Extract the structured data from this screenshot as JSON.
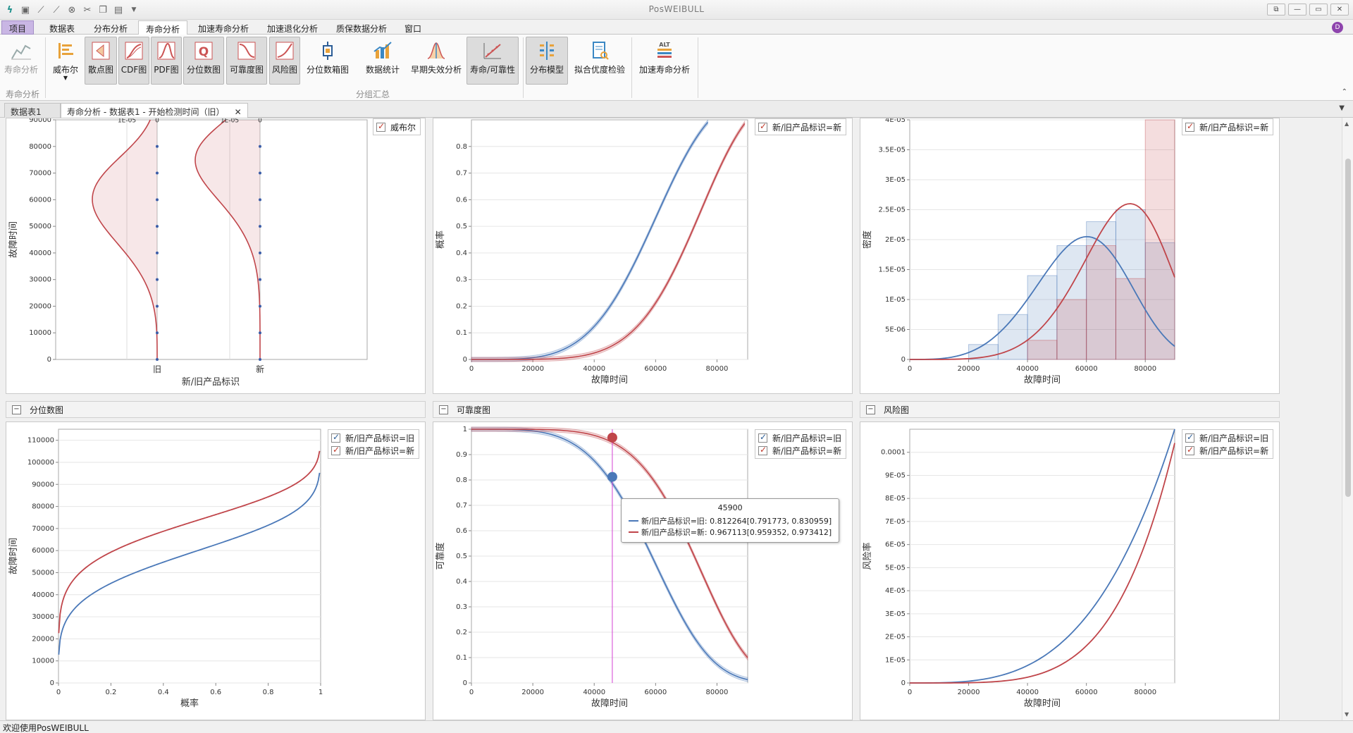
{
  "app": {
    "title": "PosWEIBULL"
  },
  "menu": {
    "project": "项目",
    "tabs": [
      "数据表",
      "分布分析",
      "寿命分析",
      "加速寿命分析",
      "加速退化分析",
      "质保数据分析",
      "窗口"
    ]
  },
  "ribbon": {
    "buttons": [
      "寿命分析",
      "威布尔",
      "散点图",
      "CDF图",
      "PDF图",
      "分位数图",
      "可靠度图",
      "风险图",
      "分位数箱图",
      "数据统计",
      "早期失效分析",
      "寿命/可靠性",
      "分布模型",
      "拟合优度检验",
      "加速寿命分析"
    ],
    "group_life": "寿命分析",
    "group_summary": "分组汇总"
  },
  "doc_tabs": [
    "数据表1",
    "寿命分析 - 数据表1 - 开始检测时间（旧）"
  ],
  "status": "欢迎使用PosWEIBULL",
  "colors": {
    "old": "#4a78b8",
    "new": "#c0454a",
    "crosshair": "#d43fd4"
  },
  "legend": {
    "old": "新/旧产品标识=旧",
    "new": "新/旧产品标识=新",
    "weibull": "威布尔"
  },
  "panels": {
    "quantile": "分位数图",
    "reliability": "可靠度图",
    "hazard": "风险图"
  },
  "tooltip": {
    "title": "45900",
    "old": "新/旧产品标识=旧: 0.812264[0.791773, 0.830959]",
    "new": "新/旧产品标识=新: 0.967113[0.959352, 0.973412]"
  },
  "chart_data": [
    {
      "id": "violin",
      "type": "scatter",
      "categories": [
        "旧",
        "新"
      ],
      "xlabel": "新/旧产品标识",
      "ylabel": "故障时间",
      "ylim": [
        0,
        90000
      ],
      "yticks": [
        0,
        10000,
        20000,
        30000,
        40000,
        50000,
        60000,
        70000,
        80000,
        90000
      ],
      "density_axis_labels": [
        "1E-05",
        "0",
        "1E-05",
        "0"
      ],
      "points": [
        0,
        10000,
        20000,
        30000,
        40000,
        50000,
        60000,
        70000,
        80000
      ]
    },
    {
      "id": "cdf",
      "type": "line",
      "xlabel": "故障时间",
      "ylabel": "概率",
      "xlim": [
        0,
        90000
      ],
      "ylim": [
        0,
        0.9
      ],
      "xticks": [
        0,
        20000,
        40000,
        60000,
        80000
      ],
      "yticks": [
        0,
        0.1,
        0.2,
        0.3,
        0.4,
        0.5,
        0.6,
        0.7,
        0.8
      ],
      "series": [
        {
          "name": "新/旧产品标识=旧",
          "weibull_scale": 64000,
          "weibull_shape": 4.3
        },
        {
          "name": "新/旧产品标识=新",
          "weibull_scale": 77500,
          "weibull_shape": 5.6
        }
      ]
    },
    {
      "id": "pdf",
      "type": "line",
      "xlabel": "故障时间",
      "ylabel": "密度",
      "xlim": [
        0,
        90000
      ],
      "ylim": [
        0,
        4e-05
      ],
      "xticks": [
        0,
        20000,
        40000,
        60000,
        80000
      ],
      "yticks": [
        "0",
        "5E-06",
        "1E-05",
        "1.5E-05",
        "2E-05",
        "2.5E-05",
        "3E-05",
        "3.5E-05",
        "4E-05"
      ],
      "histogram_bin_width": 10000,
      "histogram": [
        {
          "name": "新/旧产品标识=旧",
          "edges_start": 20000,
          "values": [
            2.5e-06,
            7.5e-06,
            1.4e-05,
            1.9e-05,
            2.3e-05,
            2.5e-05,
            1.95e-05
          ]
        },
        {
          "name": "新/旧产品标识=新",
          "edges_start": 40000,
          "values": [
            3.2e-06,
            1e-05,
            1.9e-05,
            1.35e-05,
            4.6e-05
          ]
        }
      ],
      "series": [
        {
          "name": "新/旧产品标识=旧",
          "peak_x": 64000,
          "peak_y": 2.05e-05
        },
        {
          "name": "新/旧产品标识=新",
          "peak_x": 80000,
          "peak_y": 2.6e-05
        }
      ]
    },
    {
      "id": "quantile",
      "type": "line",
      "title": "分位数图",
      "xlabel": "概率",
      "ylabel": "故障时间",
      "xlim": [
        0,
        1
      ],
      "ylim": [
        0,
        115000
      ],
      "xticks": [
        0,
        0.2,
        0.4,
        0.6,
        0.8,
        1
      ],
      "yticks": [
        0,
        10000,
        20000,
        30000,
        40000,
        50000,
        60000,
        70000,
        80000,
        90000,
        100000,
        110000
      ]
    },
    {
      "id": "reliability",
      "type": "line",
      "title": "可靠度图",
      "xlabel": "故障时间",
      "ylabel": "可靠度",
      "xlim": [
        0,
        90000
      ],
      "ylim": [
        0,
        1
      ],
      "xticks": [
        0,
        20000,
        40000,
        60000,
        80000
      ],
      "yticks": [
        0,
        0.1,
        0.2,
        0.3,
        0.4,
        0.5,
        0.6,
        0.7,
        0.8,
        0.9,
        1
      ],
      "crosshair_x": 45900,
      "markers": [
        {
          "name": "新/旧产品标识=旧",
          "x": 45900,
          "y": 0.812264
        },
        {
          "name": "新/旧产品标识=新",
          "x": 45900,
          "y": 0.967113
        }
      ]
    },
    {
      "id": "hazard",
      "type": "line",
      "title": "风险图",
      "xlabel": "故障时间",
      "ylabel": "风险率",
      "xlim": [
        0,
        90000
      ],
      "ylim": [
        0,
        0.00011
      ],
      "xticks": [
        0,
        20000,
        40000,
        60000,
        80000
      ],
      "yticks": [
        "0",
        "1E-05",
        "2E-05",
        "3E-05",
        "4E-05",
        "5E-05",
        "6E-05",
        "7E-05",
        "8E-05",
        "9E-05",
        "0.0001"
      ]
    }
  ]
}
